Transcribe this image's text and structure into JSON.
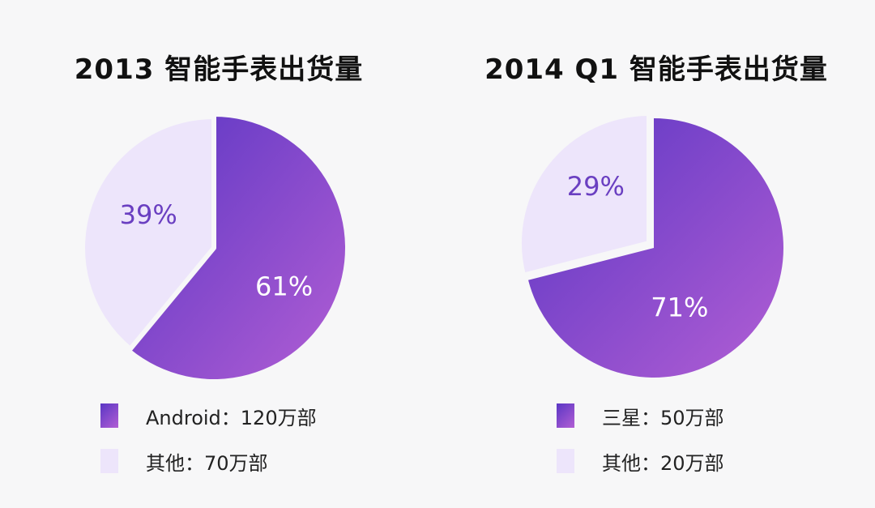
{
  "colors": {
    "primary_start": "#5a36c4",
    "primary_end": "#b25ed4",
    "secondary": "#ede5fb",
    "secondary_label": "#6a3fc1",
    "primary_label": "#ffffff",
    "separator": "#f7f7f8"
  },
  "chart_data": [
    {
      "type": "pie",
      "title": "2013  智能手表出货量",
      "slices": [
        {
          "name": "Android",
          "value": 61,
          "label": "61%"
        },
        {
          "name": "其他",
          "value": 39,
          "label": "39%"
        }
      ],
      "legend": [
        "Android：120万部",
        "其他：70万部"
      ]
    },
    {
      "type": "pie",
      "title": "2014 Q1  智能手表出货量",
      "slices": [
        {
          "name": "三星",
          "value": 71,
          "label": "71%"
        },
        {
          "name": "其他",
          "value": 29,
          "label": "29%"
        }
      ],
      "legend": [
        "三星：50万部",
        "其他：20万部"
      ]
    }
  ]
}
